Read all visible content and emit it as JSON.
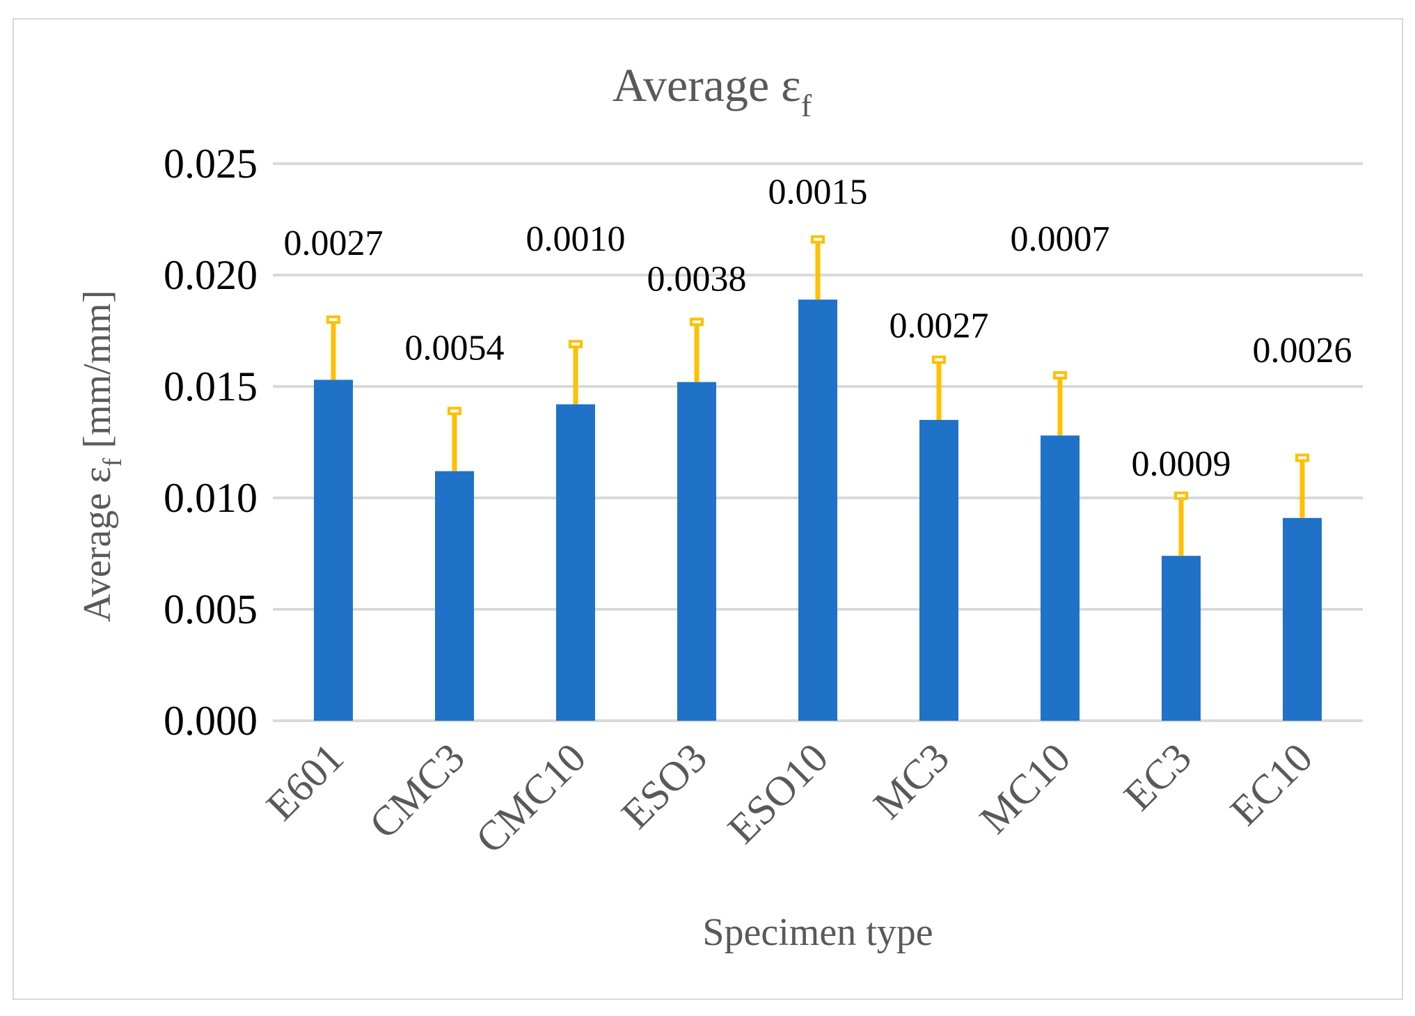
{
  "chart_data": {
    "type": "bar",
    "title": "Average ε",
    "title_subscript": "f",
    "ylabel": "Average ε",
    "ylabel_subscript": "f",
    "ylabel_units": " [mm/mm]",
    "xlabel": "Specimen type",
    "ylim": [
      0,
      0.025
    ],
    "yticks": [
      "0.000",
      "0.005",
      "0.010",
      "0.015",
      "0.020",
      "0.025"
    ],
    "ytick_values": [
      0,
      0.005,
      0.01,
      0.015,
      0.02,
      0.025
    ],
    "grid": true,
    "categories": [
      "E601",
      "CMC3",
      "CMC10",
      "ESO3",
      "ESO10",
      "MC3",
      "MC10",
      "EC3",
      "EC10"
    ],
    "series": [
      {
        "name": "Average εf",
        "color": "#1f72c8",
        "values": [
          0.0153,
          0.0112,
          0.0142,
          0.0152,
          0.0189,
          0.0135,
          0.0128,
          0.0074,
          0.0091
        ],
        "error_plus": [
          0.0027,
          0.0027,
          0.0027,
          0.0027,
          0.0027,
          0.0027,
          0.0027,
          0.0027,
          0.0027
        ],
        "error_color": "#ffc000"
      }
    ],
    "data_labels": [
      "0.0027",
      "0.0054",
      "0.0010",
      "0.0038",
      "0.0015",
      "0.0027",
      "0.0007",
      "0.0009",
      "0.0026"
    ],
    "data_label_values": [
      0.0209,
      0.0162,
      0.0211,
      0.0193,
      0.0232,
      0.0172,
      0.0211,
      0.011,
      0.0161
    ]
  },
  "colors": {
    "grid": "#d9d9d9",
    "axis_text": "#000000",
    "title_text": "#595959"
  }
}
